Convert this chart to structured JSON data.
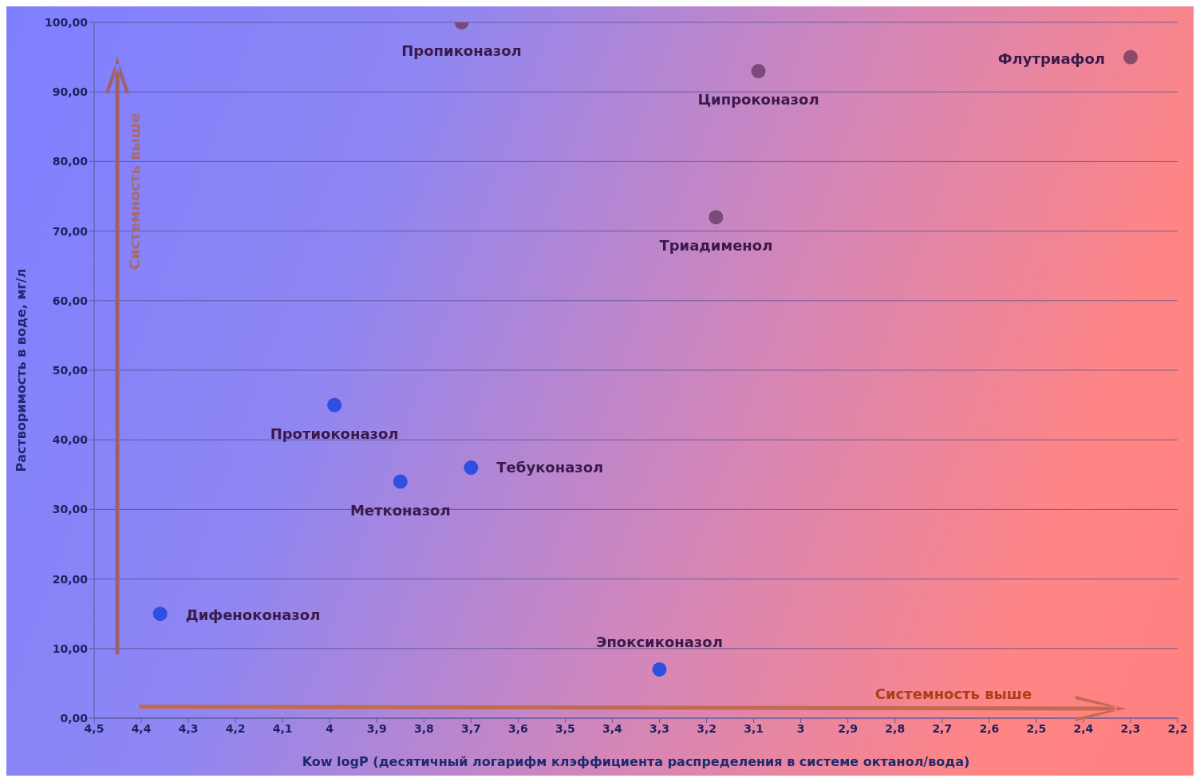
{
  "chart_data": {
    "type": "scatter",
    "xlabel": "Kow logP (десятичный логарифм клэффициента распределения в системе октанол/вода)",
    "ylabel": "Растворимость в воде, мг/л",
    "x": [
      3.72,
      2.3,
      3.09,
      3.18,
      3.99,
      3.7,
      3.85,
      4.36,
      3.3
    ],
    "values": [
      100,
      95,
      93,
      72,
      45,
      36,
      34,
      15,
      7
    ],
    "colors": [
      "#7a4a7a",
      "#8a4a6a",
      "#7a4a7a",
      "#7a4a7a",
      "#2f4fe0",
      "#2f4fe0",
      "#2f4fe0",
      "#2f4fe0",
      "#2f4fe0"
    ],
    "marker": "circle",
    "grid": "y",
    "xlim": [
      4.5,
      2.2
    ],
    "xticks": [
      {
        "value": 4.5,
        "label": "4,5"
      },
      {
        "value": 4.4,
        "label": "4,4"
      },
      {
        "value": 4.3,
        "label": "4,3"
      },
      {
        "value": 4.2,
        "label": "4,2"
      },
      {
        "value": 4.1,
        "label": "4,1"
      },
      4,
      {
        "value": 3.9,
        "label": "3,9"
      },
      {
        "value": 3.8,
        "label": "3,8"
      },
      {
        "value": 3.7,
        "label": "3,7"
      },
      {
        "value": 3.6,
        "label": "3,6"
      },
      {
        "value": 3.5,
        "label": "3,5"
      },
      {
        "value": 3.4,
        "label": "3,4"
      },
      {
        "value": 3.3,
        "label": "3,3"
      },
      {
        "value": 3.2,
        "label": "3,2"
      },
      {
        "value": 3.1,
        "label": "3,1"
      },
      3,
      {
        "value": 2.9,
        "label": "2,9"
      },
      {
        "value": 2.8,
        "label": "2,8"
      },
      {
        "value": 2.7,
        "label": "2,7"
      },
      {
        "value": 2.6,
        "label": "2,6"
      },
      {
        "value": 2.5,
        "label": "2,5"
      },
      {
        "value": 2.4,
        "label": "2,4"
      },
      {
        "value": 2.3,
        "label": "2,3"
      },
      {
        "value": 2.2,
        "label": "2,2"
      }
    ],
    "ylim": [
      0,
      100
    ],
    "yticks": [
      {
        "value": 0,
        "label": "0,00"
      },
      {
        "value": 10,
        "label": "10,00"
      },
      {
        "value": 20,
        "label": "20,00"
      },
      {
        "value": 30,
        "label": "30,00"
      },
      {
        "value": 40,
        "label": "40,00"
      },
      {
        "value": 50,
        "label": "50,00"
      },
      {
        "value": 60,
        "label": "60,00"
      },
      {
        "value": 70,
        "label": "70,00"
      },
      {
        "value": 80,
        "label": "80,00"
      },
      {
        "value": 90,
        "label": "90,00"
      },
      {
        "value": 100,
        "label": "100,00"
      }
    ],
    "annotations": [
      {
        "text": "Пропиконазол",
        "x": 3.72,
        "y": 100
      },
      {
        "text": "Флутриафол",
        "x": 2.3,
        "y": 95
      },
      {
        "text": "Ципроконазол",
        "x": 3.09,
        "y": 93
      },
      {
        "text": "Триадименол",
        "x": 3.18,
        "y": 72
      },
      {
        "text": "Протиоконазол",
        "x": 3.99,
        "y": 45
      },
      {
        "text": "Тебуконазол",
        "x": 3.7,
        "y": 36
      },
      {
        "text": "Метконазол",
        "x": 3.85,
        "y": 34
      },
      {
        "text": "Дифеноконазол",
        "x": 4.36,
        "y": 15
      },
      {
        "text": "Эпоксиконазол",
        "x": 3.3,
        "y": 7
      },
      "Системность выше",
      "Системность выше"
    ]
  }
}
